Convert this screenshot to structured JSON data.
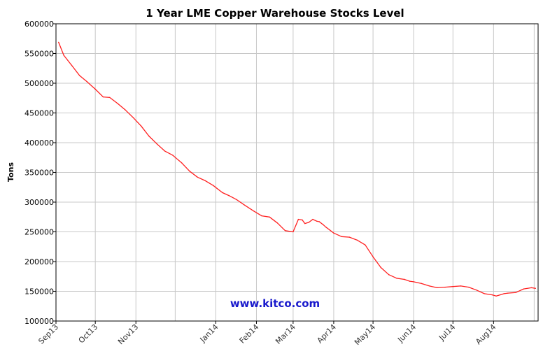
{
  "chart_data": {
    "type": "line",
    "title": "1 Year LME Copper Warehouse Stocks Level",
    "xlabel": "",
    "ylabel": "Tons",
    "ylim": [
      100000,
      600000
    ],
    "y_ticks": [
      100000,
      150000,
      200000,
      250000,
      300000,
      350000,
      400000,
      450000,
      500000,
      550000,
      600000
    ],
    "x_tick_labels": [
      "Sep13",
      "Oct13",
      "Nov13",
      "Jan14",
      "Feb14",
      "Mar14",
      "Apr14",
      "May14",
      "Jun14",
      "Jul14",
      "Aug14"
    ],
    "grid": true,
    "line_color": "#ff2020",
    "series": [
      {
        "x": [
          "2013-09-03",
          "2013-09-07",
          "2013-09-13",
          "2013-09-19",
          "2013-09-25",
          "2013-10-01",
          "2013-10-07",
          "2013-10-12",
          "2013-10-18",
          "2013-10-24",
          "2013-10-30",
          "2013-11-05",
          "2013-11-11",
          "2013-11-17",
          "2013-11-23",
          "2013-11-29",
          "2013-12-06",
          "2013-12-12",
          "2013-12-18",
          "2013-12-24",
          "2013-12-30",
          "2014-01-06",
          "2014-01-11",
          "2014-01-17",
          "2014-01-23",
          "2014-01-30",
          "2014-02-05",
          "2014-02-11",
          "2014-02-17",
          "2014-02-23",
          "2014-03-01",
          "2014-03-05",
          "2014-03-08",
          "2014-03-10",
          "2014-03-13",
          "2014-03-16",
          "2014-03-19",
          "2014-03-21",
          "2014-03-24",
          "2014-03-26",
          "2014-03-29",
          "2014-04-01",
          "2014-04-07",
          "2014-04-13",
          "2014-04-19",
          "2014-04-25",
          "2014-05-01",
          "2014-05-07",
          "2014-05-13",
          "2014-05-19",
          "2014-05-25",
          "2014-05-29",
          "2014-06-01",
          "2014-06-07",
          "2014-06-13",
          "2014-06-19",
          "2014-06-25",
          "2014-07-01",
          "2014-07-07",
          "2014-07-13",
          "2014-07-19",
          "2014-07-25",
          "2014-07-31",
          "2014-08-03",
          "2014-08-06",
          "2014-08-09",
          "2014-08-12",
          "2014-08-18",
          "2014-08-24",
          "2014-08-30",
          "2014-09-02"
        ],
        "values": [
          569000,
          547000,
          530000,
          513000,
          502000,
          490000,
          477000,
          476000,
          466000,
          455000,
          442000,
          428000,
          411000,
          398000,
          386000,
          379000,
          366000,
          352000,
          342000,
          336000,
          328000,
          316000,
          311000,
          304000,
          295000,
          285000,
          277000,
          275000,
          265000,
          252000,
          250000,
          271000,
          270000,
          264000,
          266000,
          271000,
          268000,
          267000,
          262000,
          258000,
          253000,
          248000,
          242000,
          241000,
          236000,
          228000,
          208000,
          190000,
          178000,
          172000,
          170000,
          167000,
          166000,
          163000,
          159000,
          156000,
          157000,
          158000,
          159000,
          157000,
          152000,
          146000,
          144000,
          142000,
          144000,
          146000,
          147000,
          148000,
          154000,
          156000,
          155000
        ]
      }
    ]
  },
  "watermark": "www.kitco.com"
}
